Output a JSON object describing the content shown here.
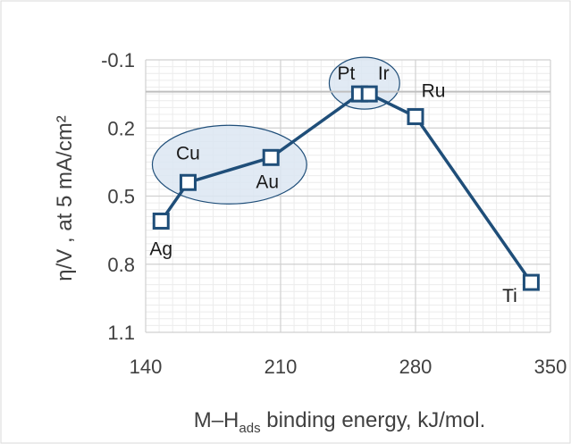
{
  "chart_data": {
    "type": "line",
    "ylabel": "η/V , at 5 mA/cm²",
    "xlabel_main": "M–H",
    "xlabel_sub": "ads",
    "xlabel_rest": " binding energy, kJ/mol.",
    "xlim": [
      140,
      350
    ],
    "ylim": [
      -0.1,
      1.1
    ],
    "y_inverted": true,
    "x_ticks": [
      "140",
      "210",
      "280",
      "350"
    ],
    "y_ticks": [
      "-0.1",
      "0.2",
      "0.5",
      "0.8",
      "1.1"
    ],
    "grid": true,
    "series": [
      {
        "marker": "open-square",
        "color": "#1f4e79",
        "points": [
          {
            "label": "Ag",
            "x": 148,
            "y": 0.61
          },
          {
            "label": "Cu",
            "x": 162,
            "y": 0.44
          },
          {
            "label": "Au",
            "x": 205,
            "y": 0.33
          },
          {
            "label": "Pt",
            "x": 251,
            "y": 0.05
          },
          {
            "label": "Ir",
            "x": 256,
            "y": 0.05
          },
          {
            "label": "Ru",
            "x": 280,
            "y": 0.15
          },
          {
            "label": "Ti",
            "x": 340,
            "y": 0.88
          }
        ]
      }
    ],
    "reference_line_y": 0.04,
    "groups": [
      {
        "members": [
          "Cu",
          "Au"
        ]
      },
      {
        "members": [
          "Pt",
          "Ir"
        ]
      }
    ]
  }
}
